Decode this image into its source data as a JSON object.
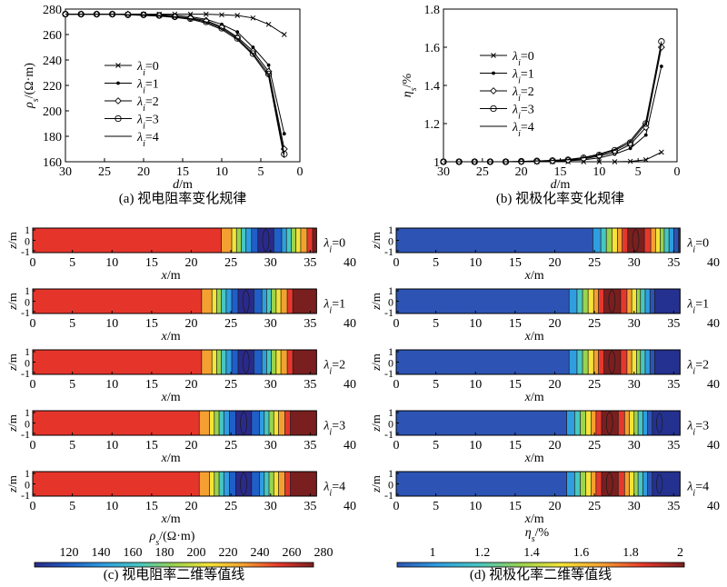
{
  "chart_data": [
    {
      "id": "a",
      "type": "line",
      "caption": "(a) 视电阻率变化规律",
      "xlabel": "d/m",
      "ylabel": "ρs/(Ω·m)",
      "xlim": [
        30,
        0
      ],
      "ylim": [
        160,
        280
      ],
      "xticks": [
        "30",
        "25",
        "20",
        "15",
        "10",
        "5",
        "0"
      ],
      "yticks": [
        "160",
        "180",
        "200",
        "220",
        "240",
        "260",
        "280"
      ],
      "x": [
        30,
        28,
        26,
        24,
        22,
        20,
        18,
        16,
        14,
        12,
        10,
        8,
        6,
        4,
        2
      ],
      "series": [
        {
          "name": "λi=0",
          "marker": "x",
          "values": [
            276,
            276,
            276,
            276,
            276,
            276,
            276,
            276,
            276,
            276,
            275.5,
            275,
            273,
            268,
            260
          ]
        },
        {
          "name": "λi=1",
          "marker": "dot",
          "values": [
            276,
            276,
            276,
            276,
            276,
            276,
            275.5,
            275,
            274,
            272,
            268,
            262,
            250,
            236,
            182
          ]
        },
        {
          "name": "λi=2",
          "marker": "diamond",
          "values": [
            276,
            276,
            276,
            276,
            276,
            275.5,
            275,
            274,
            273,
            271,
            266,
            258,
            247,
            231,
            170
          ]
        },
        {
          "name": "λi=3",
          "marker": "circle",
          "values": [
            276,
            276,
            276,
            276,
            275.5,
            275.5,
            275,
            274,
            272.5,
            270,
            265,
            257,
            245,
            229,
            166
          ]
        },
        {
          "name": "λi=4",
          "marker": "none",
          "values": [
            276,
            276,
            276,
            276,
            275.5,
            275,
            274.5,
            273.5,
            272,
            269,
            264,
            256,
            244,
            227,
            163
          ]
        }
      ],
      "legend": "center-left"
    },
    {
      "id": "b",
      "type": "line",
      "caption": "(b) 视极化率变化规律",
      "xlabel": "d/m",
      "ylabel": "ηs/%",
      "xlim": [
        30,
        0
      ],
      "ylim": [
        1,
        1.8
      ],
      "xticks": [
        "30",
        "25",
        "20",
        "15",
        "10",
        "5",
        "0"
      ],
      "yticks": [
        "1",
        "1.2",
        "1.4",
        "1.6",
        "1.8"
      ],
      "x": [
        30,
        28,
        26,
        24,
        22,
        20,
        18,
        16,
        14,
        12,
        10,
        8,
        6,
        4,
        2
      ],
      "series": [
        {
          "name": "λi=0",
          "marker": "x",
          "values": [
            1,
            1,
            1,
            1,
            1,
            1,
            1,
            1,
            1,
            1,
            1,
            1,
            1.002,
            1.01,
            1.05
          ]
        },
        {
          "name": "λi=1",
          "marker": "dot",
          "values": [
            1,
            1,
            1,
            1,
            1,
            1,
            1,
            1.002,
            1.005,
            1.01,
            1.02,
            1.04,
            1.07,
            1.14,
            1.5
          ]
        },
        {
          "name": "λi=2",
          "marker": "diamond",
          "values": [
            1,
            1,
            1,
            1,
            1,
            1,
            1.002,
            1.004,
            1.008,
            1.015,
            1.03,
            1.05,
            1.09,
            1.18,
            1.6
          ]
        },
        {
          "name": "λi=3",
          "marker": "circle",
          "values": [
            1,
            1,
            1,
            1,
            1,
            1.002,
            1.004,
            1.006,
            1.01,
            1.02,
            1.035,
            1.06,
            1.1,
            1.2,
            1.63
          ]
        },
        {
          "name": "λi=4",
          "marker": "none",
          "values": [
            1,
            1,
            1,
            1,
            1,
            1.002,
            1.004,
            1.007,
            1.012,
            1.022,
            1.04,
            1.065,
            1.11,
            1.21,
            1.62
          ]
        }
      ],
      "legend": "center-left"
    },
    {
      "id": "c",
      "type": "heatmap",
      "caption": "(c) 视电阻率二维等值线",
      "xlabel": "x/m",
      "ylabel": "z/m",
      "xticks": [
        "0",
        "5",
        "10",
        "15",
        "20",
        "25",
        "30",
        "35",
        "40"
      ],
      "yticks": [
        "1",
        "0",
        "-1"
      ],
      "colorbar_label": "ρs/(Ω·m)",
      "colorbar_ticks": [
        "120",
        "140",
        "160",
        "180",
        "200",
        "220",
        "240",
        "260",
        "280"
      ],
      "panels": [
        {
          "label": "λi=0",
          "boundary_x": 23.8
        },
        {
          "label": "λi=1",
          "boundary_x": 21.3
        },
        {
          "label": "λi=2",
          "boundary_x": 21.3
        },
        {
          "label": "λi=3",
          "boundary_x": 21.0
        },
        {
          "label": "λi=4",
          "boundary_x": 21.0
        }
      ]
    },
    {
      "id": "d",
      "type": "heatmap",
      "caption": "(d) 视极化率二维等值线",
      "xlabel": "x/m",
      "ylabel": "z/m",
      "xticks": [
        "0",
        "5",
        "10",
        "15",
        "20",
        "25",
        "30",
        "35",
        "40"
      ],
      "yticks": [
        "1",
        "0",
        "-1"
      ],
      "colorbar_label": "ηs/%",
      "colorbar_ticks": [
        "1",
        "1.2",
        "1.4",
        "1.6",
        "1.8",
        "2"
      ],
      "panels": [
        {
          "label": "λi=0",
          "boundary_x": 24.8
        },
        {
          "label": "λi=1",
          "boundary_x": 21.8
        },
        {
          "label": "λi=2",
          "boundary_x": 21.8
        },
        {
          "label": "λi=3",
          "boundary_x": 21.5
        },
        {
          "label": "λi=4",
          "boundary_x": 21.5
        }
      ]
    }
  ],
  "colors": {
    "res_stops": [
      "#2a2a8a",
      "#1f5fc7",
      "#2f9ee0",
      "#47c6c2",
      "#9ad34e",
      "#f5e338",
      "#f4a031",
      "#e5382c",
      "#7a1f1f"
    ],
    "res_base": "#e5352b",
    "ip_base": "#2d54b4",
    "ip_stops": [
      "#2d54b4",
      "#2f9ee0",
      "#47c6c2",
      "#9ad34e",
      "#f5e338",
      "#f4a031",
      "#e5382c",
      "#7a1f1f"
    ]
  }
}
